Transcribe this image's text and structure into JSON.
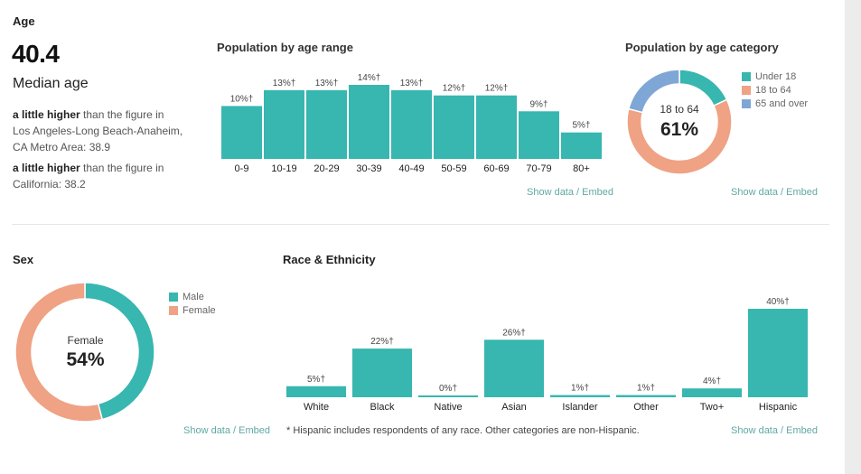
{
  "colors": {
    "teal": "#38b6b0",
    "salmon": "#efa284",
    "blue": "#7fa7d6",
    "link": "#5fa9a2"
  },
  "age": {
    "section_title": "Age",
    "median_value": "40.4",
    "median_label": "Median age",
    "comparisons": [
      {
        "strong": "a little higher",
        "line1": " than the figure in",
        "line2": "Los Angeles-Long Beach-Anaheim,",
        "line3": "CA Metro Area: 38.9"
      },
      {
        "strong": "a little higher",
        "line1": " than the figure in",
        "line2": "California: 38.2"
      }
    ]
  },
  "sex": {
    "section_title": "Sex"
  },
  "race": {
    "section_title": "Race & Ethnicity",
    "footnote": "* Hispanic includes respondents of any race. Other categories are non-Hispanic."
  },
  "links": {
    "show_data": "Show data",
    "separator": "/",
    "embed": "Embed"
  },
  "chart_data": [
    {
      "type": "bar",
      "title": "Population by age range",
      "categories": [
        "0-9",
        "10-19",
        "20-29",
        "30-39",
        "40-49",
        "50-59",
        "60-69",
        "70-79",
        "80+"
      ],
      "values": [
        10,
        13,
        13,
        14,
        13,
        12,
        12,
        9,
        5
      ],
      "labels": [
        "10%†",
        "13%†",
        "13%†",
        "14%†",
        "13%†",
        "12%†",
        "12%†",
        "9%†",
        "5%†"
      ],
      "ylim": [
        0,
        14
      ]
    },
    {
      "type": "pie",
      "title": "Population by age category",
      "categories": [
        "Under 18",
        "18 to 64",
        "65 and over"
      ],
      "values": [
        18,
        61,
        21
      ],
      "center_label": "18 to 64",
      "center_value": "61%"
    },
    {
      "type": "pie",
      "categories": [
        "Male",
        "Female"
      ],
      "values": [
        46,
        54
      ],
      "center_label": "Female",
      "center_value": "54%"
    },
    {
      "type": "bar",
      "categories": [
        "White",
        "Black",
        "Native",
        "Asian",
        "Islander",
        "Other",
        "Two+",
        "Hispanic"
      ],
      "values": [
        5,
        22,
        0,
        26,
        1,
        1,
        4,
        40
      ],
      "labels": [
        "5%†",
        "22%†",
        "0%†",
        "26%†",
        "1%†",
        "1%†",
        "4%†",
        "40%†"
      ],
      "ylim": [
        0,
        40
      ]
    }
  ]
}
